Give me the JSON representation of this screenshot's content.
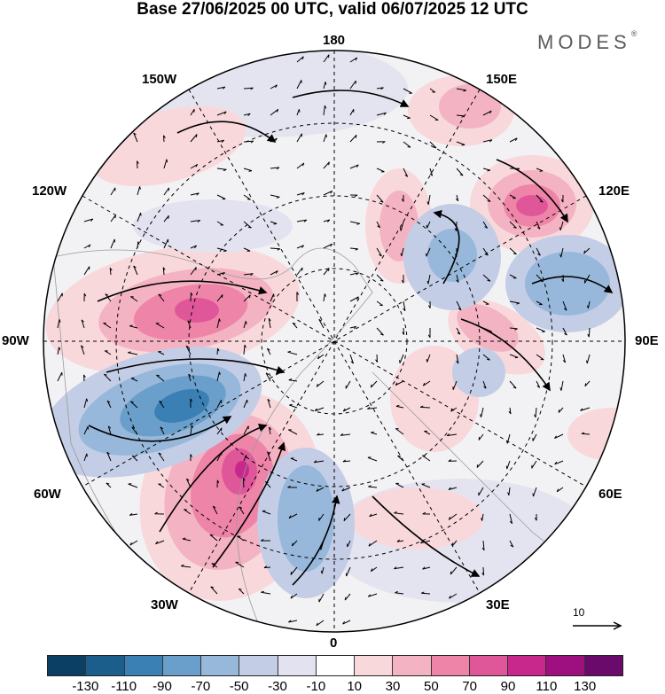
{
  "title": "Base 27/06/2025 00 UTC, valid 06/07/2025 12 UTC",
  "logo": {
    "text": "MODES",
    "mark": "®"
  },
  "map_labels": {
    "top": "180",
    "bottom": "0",
    "left": "90W",
    "right": "90E",
    "upper_left_1": "150W",
    "upper_left_2": "120W",
    "lower_left_1": "60W",
    "lower_left_2": "30W",
    "upper_right_1": "150E",
    "upper_right_2": "120E",
    "lower_right_1": "60E",
    "lower_right_2": "30E"
  },
  "reference_vector": "10",
  "colorbar": {
    "colors": [
      "#0b3f63",
      "#1b5e8c",
      "#3a80b4",
      "#6a9fcb",
      "#97b8da",
      "#c3cde6",
      "#e2e2f0",
      "#ffffff",
      "#f9d8dc",
      "#f4b3c2",
      "#ee85a8",
      "#e05799",
      "#c8288c",
      "#9e0f80",
      "#6a0a6b"
    ],
    "ticks": [
      "-130",
      "-110",
      "-90",
      "-70",
      "-50",
      "-30",
      "-10",
      "10",
      "30",
      "50",
      "70",
      "90",
      "110",
      "130"
    ]
  }
}
